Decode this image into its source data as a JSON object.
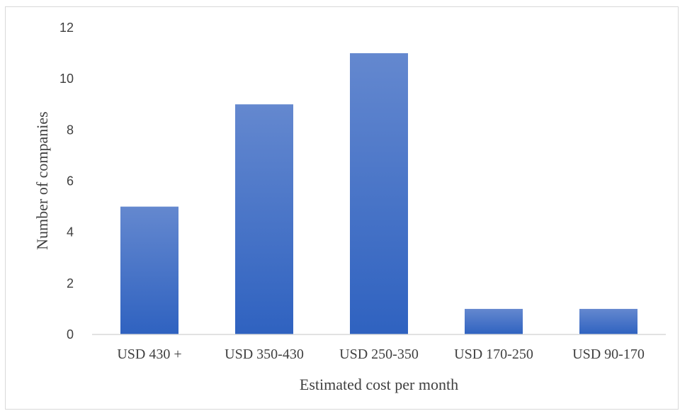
{
  "chart_data": {
    "type": "bar",
    "categories": [
      "USD 430 +",
      "USD 350-430",
      "USD 250-350",
      "USD 170-250",
      "USD 90-170"
    ],
    "values": [
      5,
      9,
      11,
      1,
      1
    ],
    "xlabel": "Estimated cost per month",
    "ylabel": "Number of companies",
    "ylim": [
      0,
      12
    ],
    "yticks": [
      0,
      2,
      4,
      6,
      8,
      10,
      12
    ],
    "grid": false,
    "legend": "none",
    "colors": {
      "bar_top": "#6488cf",
      "bar_bottom": "#2f62c0",
      "axis_line": "#d9d9d9",
      "text": "#404040"
    }
  }
}
